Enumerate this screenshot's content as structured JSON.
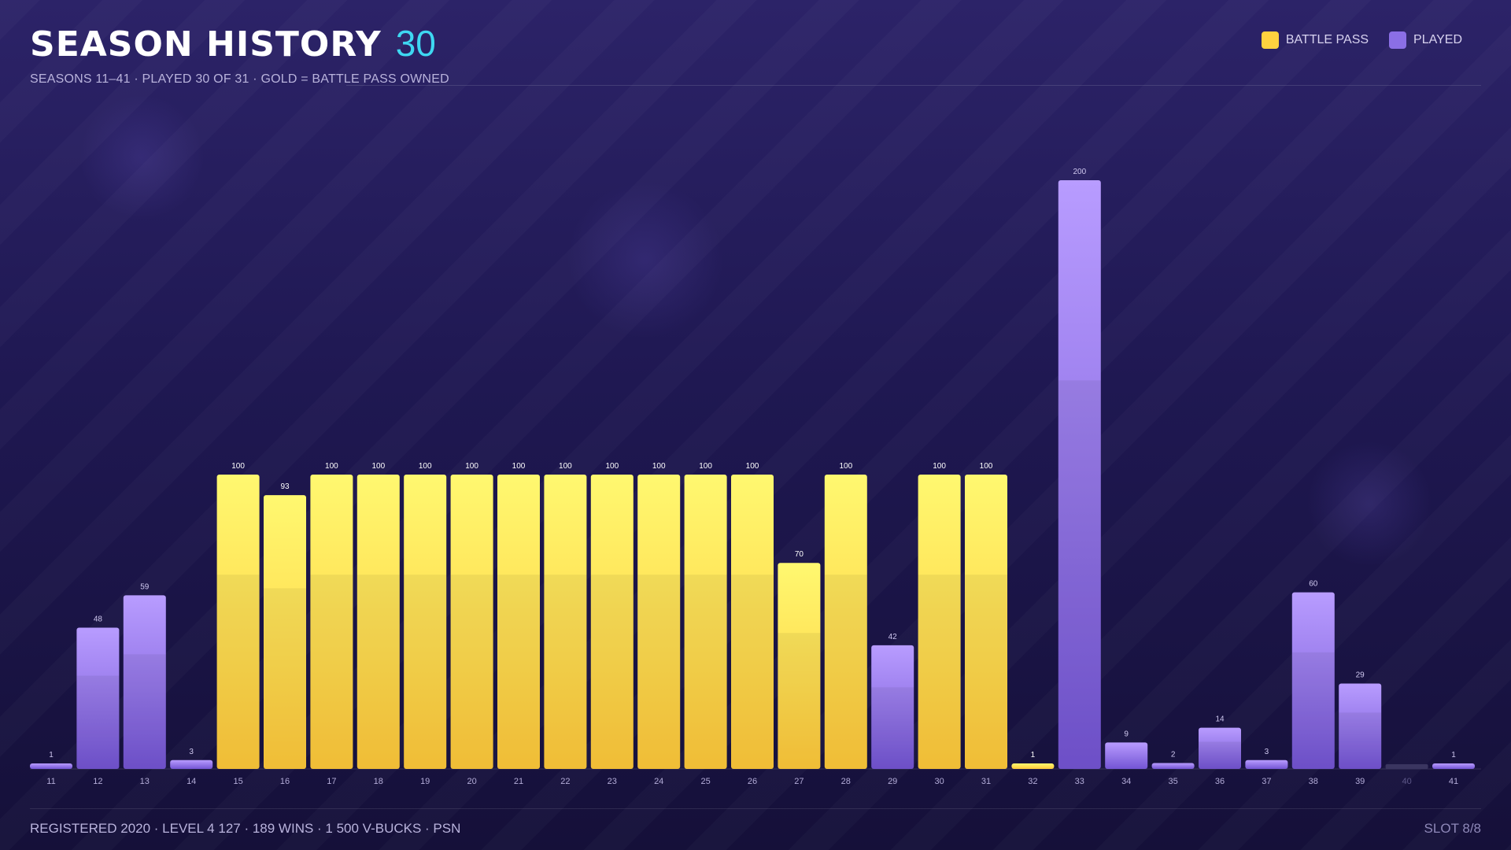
{
  "header": {
    "title": "SEASON HISTORY",
    "count": "30",
    "subtitle": "SEASONS 11–41 · PLAYED 30 OF 31 · GOLD = BATTLE PASS OWNED"
  },
  "legend": {
    "battle_pass_label": "BATTLE PASS",
    "played_label": "PLAYED"
  },
  "footer": {
    "left": "REGISTERED 2020 · LEVEL 4 127 · 189 WINS · 1 500 V-BUCKS · PSN",
    "right": "SLOT 8/8"
  },
  "colors": {
    "battle_pass": "#ffd23f",
    "played": "#8b6fe6",
    "accent": "#3ed8f2",
    "unplayed": "#3a3560"
  },
  "chart_data": {
    "type": "bar",
    "title": "SEASON HISTORY",
    "categories": [
      "11",
      "12",
      "13",
      "14",
      "15",
      "16",
      "17",
      "18",
      "19",
      "20",
      "21",
      "22",
      "23",
      "24",
      "25",
      "26",
      "27",
      "28",
      "29",
      "30",
      "31",
      "32",
      "33",
      "34",
      "35",
      "36",
      "37",
      "38",
      "39",
      "40",
      "41"
    ],
    "values": [
      1,
      48,
      59,
      3,
      100,
      93,
      100,
      100,
      100,
      100,
      100,
      100,
      100,
      100,
      100,
      100,
      70,
      100,
      42,
      100,
      100,
      1,
      200,
      9,
      2,
      14,
      3,
      60,
      29,
      null,
      1
    ],
    "battle_pass": [
      false,
      false,
      false,
      false,
      true,
      true,
      true,
      true,
      true,
      true,
      true,
      true,
      true,
      true,
      true,
      true,
      true,
      true,
      false,
      true,
      true,
      true,
      false,
      false,
      false,
      false,
      false,
      false,
      false,
      false,
      false
    ],
    "played": [
      true,
      true,
      true,
      true,
      true,
      true,
      true,
      true,
      true,
      true,
      true,
      true,
      true,
      true,
      true,
      true,
      true,
      true,
      true,
      true,
      true,
      true,
      true,
      true,
      true,
      true,
      true,
      true,
      true,
      false,
      true
    ],
    "ylim": [
      0,
      200
    ],
    "grid": false,
    "legend_position": "top-right"
  }
}
